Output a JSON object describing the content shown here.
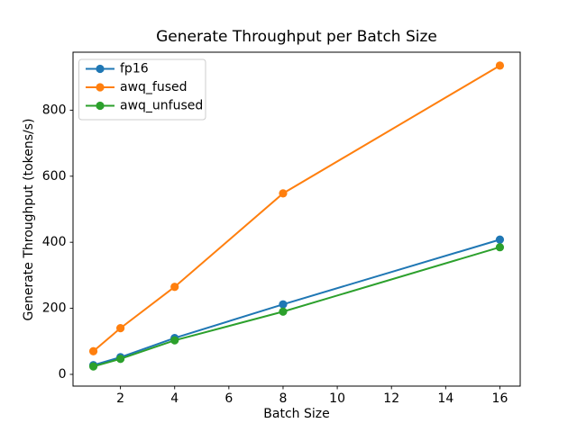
{
  "chart_data": {
    "type": "line",
    "title": "Generate Throughput per Batch Size",
    "xlabel": "Batch Size",
    "ylabel": "Generate Throughput (tokens/s)",
    "x": [
      1,
      2,
      4,
      8,
      16
    ],
    "series": [
      {
        "name": "fp16",
        "color": "#1f77b4",
        "values": [
          28,
          52,
          110,
          212,
          408
        ]
      },
      {
        "name": "awq_fused",
        "color": "#ff7f0e",
        "values": [
          70,
          140,
          265,
          548,
          935
        ]
      },
      {
        "name": "awq_unfused",
        "color": "#2ca02c",
        "values": [
          24,
          47,
          103,
          190,
          385
        ]
      }
    ],
    "xticks": [
      2,
      4,
      6,
      8,
      10,
      12,
      14,
      16
    ],
    "yticks": [
      0,
      200,
      400,
      600,
      800
    ],
    "xlim": [
      0.25,
      16.75
    ],
    "ylim": [
      -35.5,
      975.5
    ],
    "legend_position": "upper left",
    "grid": false,
    "marker": "o"
  },
  "colors": {
    "background": "#ffffff",
    "spine": "#000000",
    "text": "#000000",
    "legend_border": "#cccccc",
    "legend_background": "#ffffff"
  }
}
